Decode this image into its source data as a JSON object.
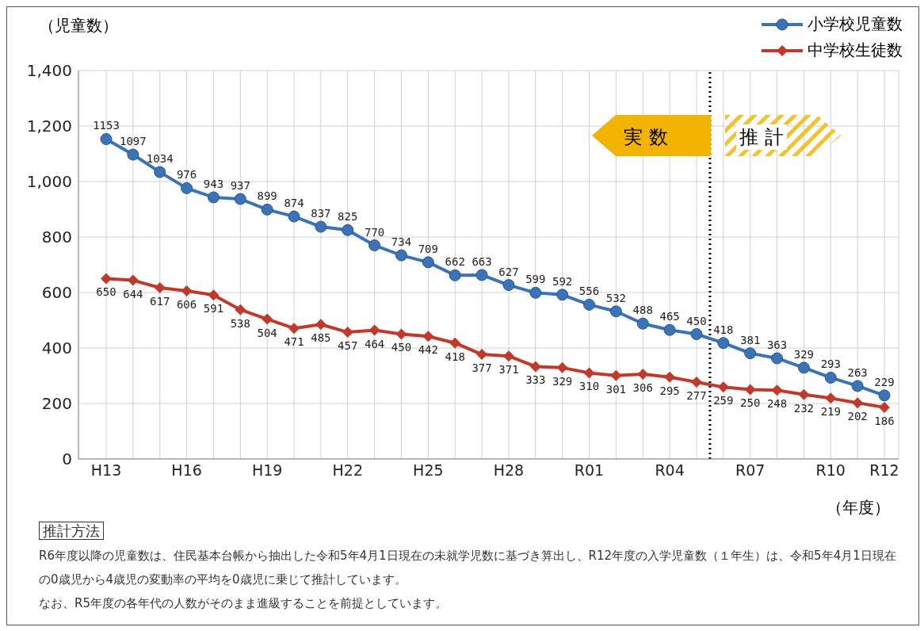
{
  "chart_data": {
    "type": "line",
    "ylabel": "（児童数）",
    "xlabel": "（年度）",
    "categories": [
      "H13",
      null,
      null,
      "H16",
      null,
      null,
      "H19",
      null,
      null,
      "H22",
      null,
      null,
      "H25",
      null,
      null,
      "H28",
      null,
      null,
      "R01",
      null,
      null,
      "R04",
      null,
      null,
      "R07",
      null,
      null,
      "R10",
      null,
      "R12"
    ],
    "series": [
      {
        "name": "小学校児童数",
        "color": "#3b73b9",
        "marker": "circle",
        "values": [
          1153,
          1097,
          1034,
          976,
          943,
          937,
          899,
          874,
          837,
          825,
          770,
          734,
          709,
          662,
          663,
          627,
          599,
          592,
          556,
          532,
          488,
          465,
          450,
          418,
          381,
          363,
          329,
          293,
          263,
          229
        ]
      },
      {
        "name": "中学校生徒数",
        "color": "#c0392b",
        "marker": "diamond",
        "values": [
          650,
          644,
          617,
          606,
          591,
          538,
          504,
          471,
          485,
          457,
          464,
          450,
          442,
          418,
          377,
          371,
          333,
          329,
          310,
          301,
          306,
          295,
          277,
          259,
          250,
          248,
          232,
          219,
          202,
          186
        ]
      }
    ],
    "ylim": [
      0,
      1400
    ],
    "yticks": [
      0,
      200,
      400,
      600,
      800,
      {
        "value": 1000,
        "label": "1,000"
      },
      {
        "value": 1200,
        "label": "1,200"
      },
      {
        "value": 1400,
        "label": "1,400"
      }
    ],
    "grid": true,
    "legend": "top right",
    "data_labels": true,
    "annotations": [
      "実 数",
      "推 計",
      "推計方法",
      "R6年度以降の児童数は、住民基本台帳から抽出した令和5年4月1日現在の未就学児数に基づき算出し、R12年度の入学児童数（１年生）は、令和5年4月1日現在の0歳児から4歳児の変動率の平均を0歳児に乗じて推計しています。",
      "なお、R5年度の各年代の人数がそのまま進級することを前提としています。"
    ]
  }
}
